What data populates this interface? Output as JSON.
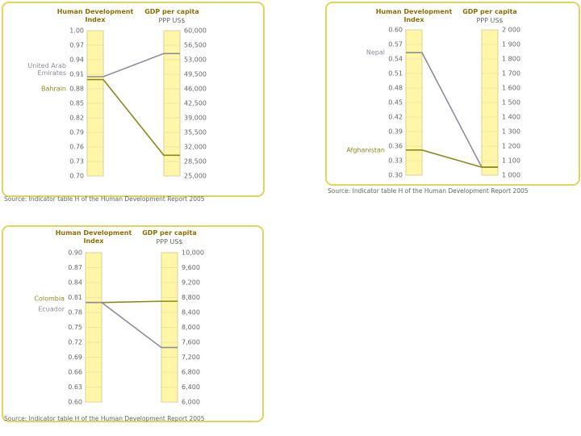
{
  "chart_data": [
    {
      "type": "parallel",
      "categories": [
        "Human Development Index",
        "GDP per capita"
      ],
      "subtitle": "PPP US$",
      "series": [
        {
          "name": "United Arab Emirates",
          "color": "#8c8c9c",
          "values": [
            0.905,
            54500
          ]
        },
        {
          "name": "Bahrain",
          "color": "#8a8a1a",
          "values": [
            0.899,
            30000
          ]
        }
      ],
      "ylim": [
        0.7,
        1.0
      ],
      "yticks": [
        {
          "value": 1.0,
          "label": "1.00"
        },
        0.97,
        0.94,
        0.91,
        0.88,
        0.85,
        0.82,
        0.79,
        0.76,
        0.73,
        {
          "value": 0.7,
          "label": "0.70"
        }
      ],
      "y2lim": [
        25000,
        60000
      ],
      "y2ticks": [
        {
          "value": 60000,
          "label": "60,000"
        },
        {
          "value": 56500,
          "label": "56,500"
        },
        {
          "value": 53000,
          "label": "53,000"
        },
        {
          "value": 49500,
          "label": "49,500"
        },
        {
          "value": 46000,
          "label": "46,000"
        },
        {
          "value": 42500,
          "label": "42,500"
        },
        {
          "value": 39000,
          "label": "39,000"
        },
        {
          "value": 35500,
          "label": "35,500"
        },
        {
          "value": 32000,
          "label": "32,000"
        },
        {
          "value": 28500,
          "label": "28,500"
        },
        {
          "value": 25000,
          "label": "25,000"
        }
      ],
      "source": "Source: Indicator table H of the Human Development Report 2005"
    },
    {
      "type": "parallel",
      "categories": [
        "Human Development Index",
        "GDP per capita"
      ],
      "subtitle": "PPP US$",
      "series": [
        {
          "name": "Nepal",
          "color": "#8c8c9c",
          "values": [
            0.553,
            1055
          ]
        },
        {
          "name": "Afghanistan",
          "color": "#8a8a1a",
          "values": [
            0.352,
            1055
          ]
        }
      ],
      "ylim": [
        0.3,
        0.6
      ],
      "yticks": [
        {
          "value": 0.6,
          "label": "0.60"
        },
        0.57,
        0.54,
        0.51,
        0.48,
        0.45,
        0.42,
        0.39,
        0.36,
        0.33,
        {
          "value": 0.3,
          "label": "0.30"
        }
      ],
      "y2lim": [
        1000,
        2000
      ],
      "y2ticks": [
        {
          "value": 2000,
          "label": "2 000"
        },
        {
          "value": 1900,
          "label": "1 900"
        },
        {
          "value": 1800,
          "label": "1 800"
        },
        {
          "value": 1700,
          "label": "1 700"
        },
        {
          "value": 1600,
          "label": "1 600"
        },
        {
          "value": 1500,
          "label": "1 500"
        },
        {
          "value": 1400,
          "label": "1 400"
        },
        {
          "value": 1300,
          "label": "1 300"
        },
        {
          "value": 1200,
          "label": "1 200"
        },
        {
          "value": 1100,
          "label": "1 100"
        },
        {
          "value": 1000,
          "label": "1 000"
        }
      ],
      "source": "Source: Indicator table H of the Human Development Report 2005"
    },
    {
      "type": "parallel",
      "categories": [
        "Human Development Index",
        "GDP per capita"
      ],
      "subtitle": "PPP US$",
      "series": [
        {
          "name": "Colombia",
          "color": "#8a8a1a",
          "values": [
            0.8,
            8700
          ]
        },
        {
          "name": "Ecuador",
          "color": "#8c8c9c",
          "values": [
            0.8,
            7460
          ]
        }
      ],
      "ylim": [
        0.6,
        0.9
      ],
      "yticks": [
        {
          "value": 0.9,
          "label": "0.90"
        },
        0.87,
        0.84,
        0.81,
        0.78,
        0.75,
        0.72,
        0.69,
        0.66,
        0.63,
        {
          "value": 0.6,
          "label": "0.60"
        }
      ],
      "y2lim": [
        6000,
        10000
      ],
      "y2ticks": [
        {
          "value": 10000,
          "label": "10,000"
        },
        {
          "value": 9600,
          "label": "9,600"
        },
        {
          "value": 9200,
          "label": "9,200"
        },
        {
          "value": 8800,
          "label": "8,800"
        },
        {
          "value": 8400,
          "label": "8,400"
        },
        {
          "value": 8000,
          "label": "8,000"
        },
        {
          "value": 7600,
          "label": "7,600"
        },
        {
          "value": 7200,
          "label": "7,200"
        },
        {
          "value": 6800,
          "label": "6,800"
        },
        {
          "value": 6400,
          "label": "6,400"
        },
        {
          "value": 6000,
          "label": "6,000"
        }
      ],
      "source": "Source: Indicator table H of the Human Development Report 2005"
    }
  ]
}
